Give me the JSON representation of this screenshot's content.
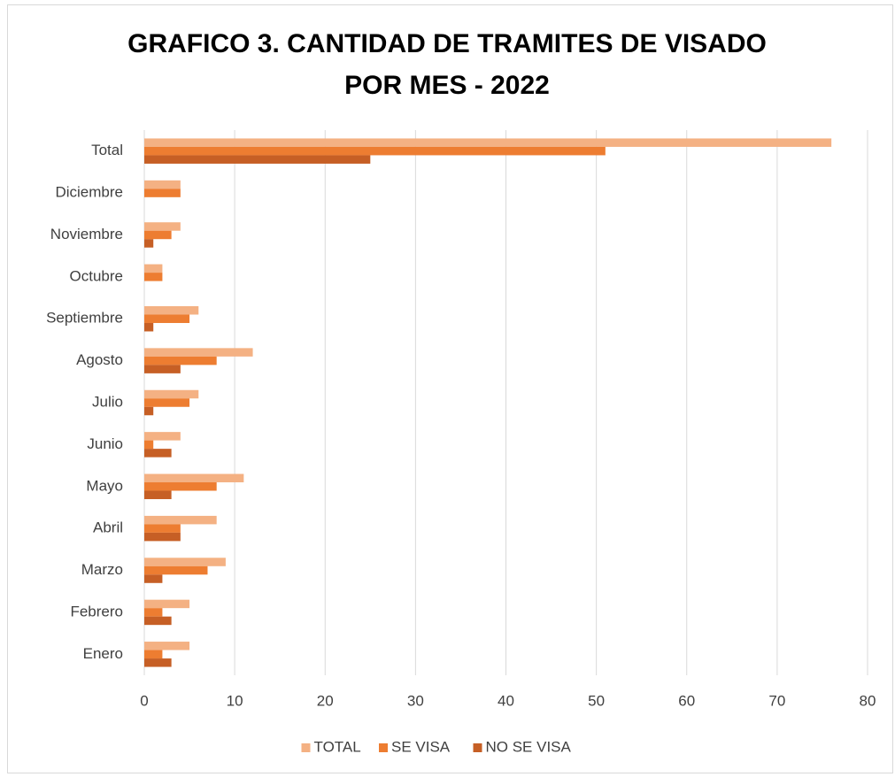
{
  "chart_data": {
    "type": "hbar",
    "title": "GRAFICO 3. CANTIDAD DE TRAMITES DE VISADO POR MES - 2022",
    "categories": [
      "Enero",
      "Febrero",
      "Marzo",
      "Abril",
      "Mayo",
      "Junio",
      "Julio",
      "Agosto",
      "Septiembre",
      "Octubre",
      "Noviembre",
      "Diciembre",
      "Total"
    ],
    "series": [
      {
        "name": "TOTAL",
        "color": "#f4b183",
        "values": [
          5,
          5,
          9,
          8,
          11,
          4,
          6,
          12,
          6,
          2,
          4,
          4,
          76
        ]
      },
      {
        "name": "SE VISA",
        "color": "#ed7d31",
        "values": [
          2,
          2,
          7,
          4,
          8,
          1,
          5,
          8,
          5,
          2,
          3,
          4,
          51
        ]
      },
      {
        "name": "NO SE VISA",
        "color": "#c65f25",
        "values": [
          3,
          3,
          2,
          4,
          3,
          3,
          1,
          4,
          1,
          0,
          1,
          0,
          25
        ]
      }
    ],
    "xlim": [
      0,
      80
    ],
    "xticks": [
      0,
      10,
      20,
      30,
      40,
      50,
      60,
      70,
      80
    ],
    "grid": true,
    "legend": "bottom"
  }
}
